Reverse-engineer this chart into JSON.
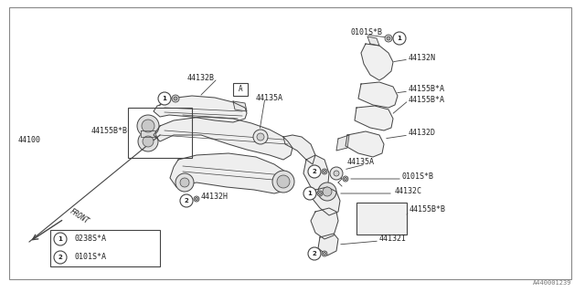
{
  "bg_color": "#ffffff",
  "border_color": "#999999",
  "line_color": "#444444",
  "text_color": "#222222",
  "diagram_id": "A440001239",
  "part_44100": "44100",
  "legend": [
    {
      "num": "1",
      "code": "0238S*A"
    },
    {
      "num": "2",
      "code": "0101S*A"
    }
  ],
  "figsize": [
    6.4,
    3.2
  ],
  "dpi": 100
}
